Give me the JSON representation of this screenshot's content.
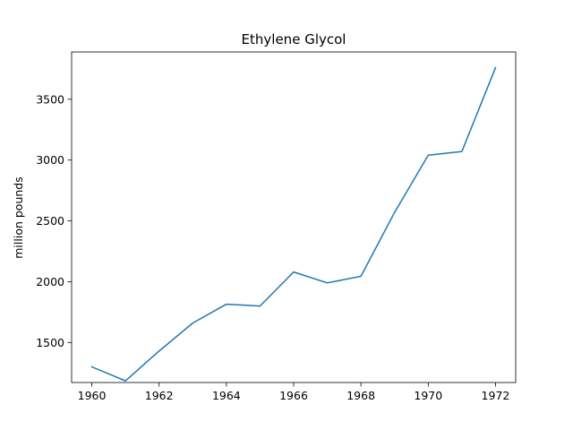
{
  "chart_data": {
    "type": "line",
    "title": "Ethylene Glycol",
    "xlabel": "",
    "ylabel": "million pounds",
    "x": [
      1960,
      1961,
      1962,
      1963,
      1964,
      1965,
      1966,
      1967,
      1968,
      1969,
      1970,
      1971,
      1972
    ],
    "series": [
      {
        "values": [
          1300,
          1185,
          1430,
          1660,
          1815,
          1800,
          2080,
          1990,
          2045,
          2570,
          3040,
          3070,
          3760
        ],
        "color": "#1f77b4"
      }
    ],
    "xlim": [
      1959.4,
      1972.6
    ],
    "ylim": [
      1171.25,
      3888.75
    ],
    "xticks": [
      1960,
      1962,
      1964,
      1966,
      1968,
      1970,
      1972
    ],
    "yticks": [
      1500,
      2000,
      2500,
      3000,
      3500
    ],
    "grid": false,
    "legend": "none"
  }
}
